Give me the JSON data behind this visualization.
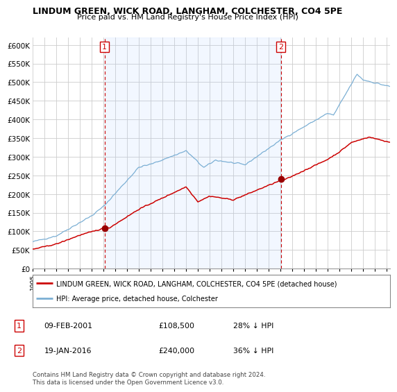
{
  "title": "LINDUM GREEN, WICK ROAD, LANGHAM, COLCHESTER, CO4 5PE",
  "subtitle": "Price paid vs. HM Land Registry's House Price Index (HPI)",
  "legend_line1": "LINDUM GREEN, WICK ROAD, LANGHAM, COLCHESTER, CO4 5PE (detached house)",
  "legend_line2": "HPI: Average price, detached house, Colchester",
  "annotation1_label": "1",
  "annotation1_date": "09-FEB-2001",
  "annotation1_price": "£108,500",
  "annotation1_hpi": "28% ↓ HPI",
  "annotation2_label": "2",
  "annotation2_date": "19-JAN-2016",
  "annotation2_price": "£240,000",
  "annotation2_hpi": "36% ↓ HPI",
  "footer": "Contains HM Land Registry data © Crown copyright and database right 2024.\nThis data is licensed under the Open Government Licence v3.0.",
  "hpi_color": "#7bafd4",
  "hpi_fill_color": "#ddeeff",
  "price_color": "#cc0000",
  "marker_color": "#990000",
  "annotation_box_color": "#cc0000",
  "ylim": [
    0,
    620000
  ],
  "yticks": [
    0,
    50000,
    100000,
    150000,
    200000,
    250000,
    300000,
    350000,
    400000,
    450000,
    500000,
    550000,
    600000
  ],
  "sale1_x": 2001.08,
  "sale1_y": 108500,
  "sale2_x": 2016.04,
  "sale2_y": 240000,
  "vline1_x": 2001.08,
  "vline2_x": 2016.04,
  "xmin": 1995.0,
  "xmax": 2025.3,
  "bg_color": "#ffffff",
  "grid_color": "#cccccc"
}
